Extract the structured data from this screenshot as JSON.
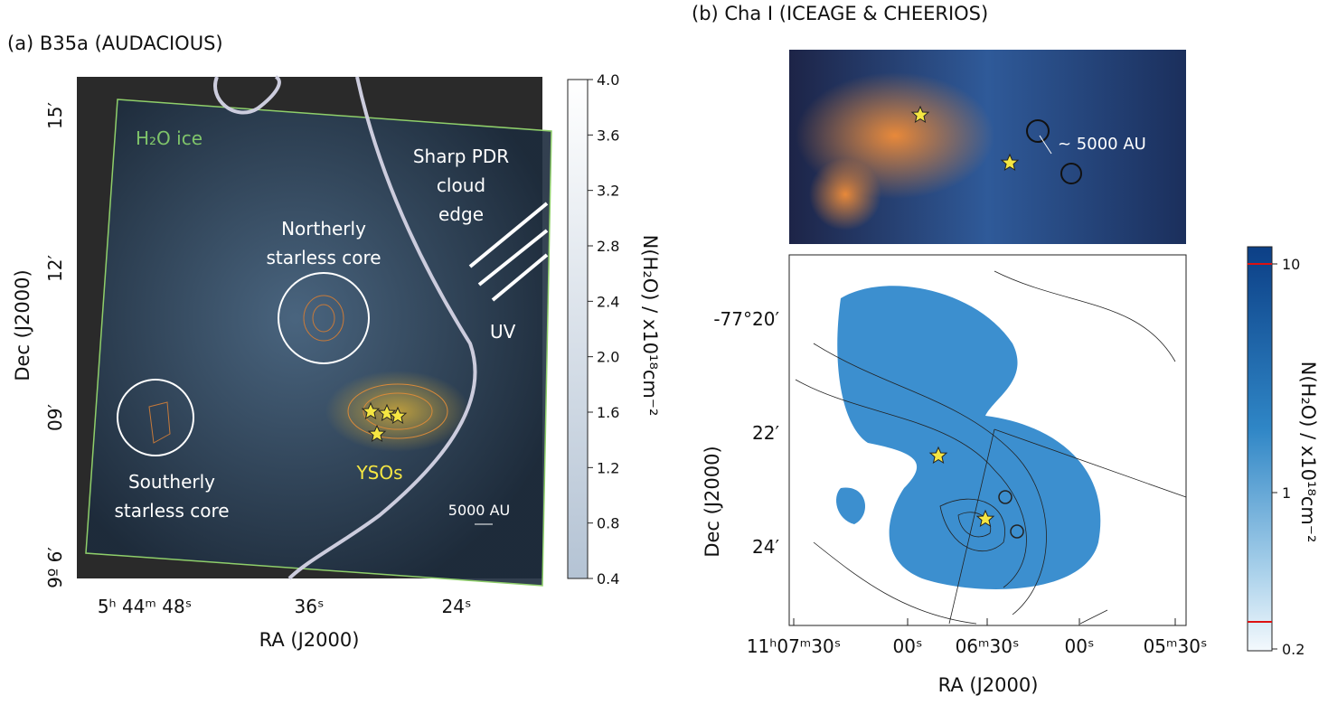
{
  "panel_a": {
    "title": "(a) B35a (AUDACIOUS)",
    "labels": {
      "ice": "H₂O ice",
      "pdr": [
        "Sharp PDR",
        "cloud",
        "edge"
      ],
      "uv": "UV",
      "north": [
        "Northerly",
        "starless core"
      ],
      "south": [
        "Southerly",
        "starless core"
      ],
      "ysos": "YSOs",
      "scale": "5000 AU"
    },
    "xticks": [
      "5ʰ 44ᵐ 48ˢ",
      "36ˢ",
      "24ˢ"
    ],
    "yticks": [
      "15′",
      "12′",
      "09′",
      "9º 6′"
    ],
    "xlabel": "RA (J2000)",
    "ylabel": "Dec (J2000)",
    "colorbar": {
      "label": "N(H₂O) / x10¹⁸cm⁻²",
      "ticks": [
        "4.0",
        "3.6",
        "3.2",
        "2.8",
        "2.4",
        "2.0",
        "1.6",
        "1.2",
        "0.8",
        "0.4"
      ]
    }
  },
  "panel_b": {
    "title": "(b) Cha I (ICEAGE & CHEERIOS)",
    "scale": "~ 5000 AU",
    "xticks": [
      "11ʰ07ᵐ30ˢ",
      "00ˢ",
      "06ᵐ30ˢ",
      "00ˢ",
      "05ᵐ30ˢ"
    ],
    "yticks": [
      "-77°20′",
      "22′",
      "24′"
    ],
    "xlabel": "RA (J2000)",
    "ylabel": "Dec (J2000)",
    "colorbar": {
      "label": "N(H₂O) / x10¹⁸cm⁻²",
      "ticks": [
        "10",
        "1",
        "0.2"
      ]
    }
  }
}
